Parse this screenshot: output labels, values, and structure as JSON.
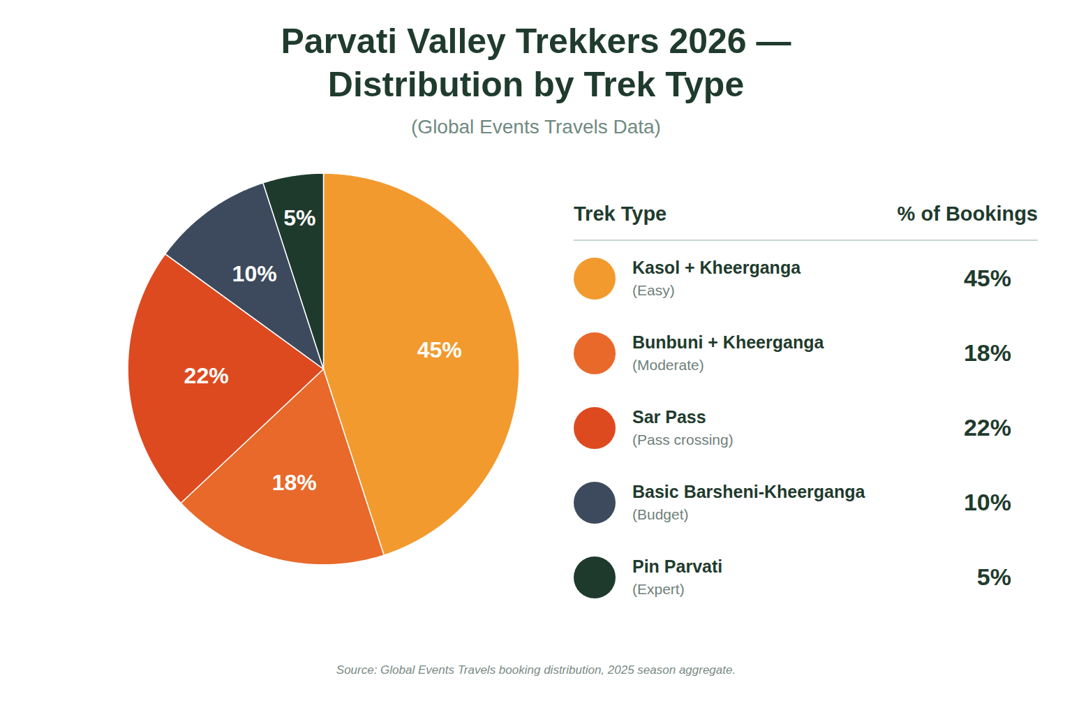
{
  "chart_data": {
    "type": "pie",
    "title": "Parvati Valley Trekkers 2026 — Distribution by Trek Type",
    "subtitle": "(Global Events Travels Data)",
    "categories": [
      "Kasol + Kheerganga",
      "Bunbuni + Kheerganga",
      "Sar Pass",
      "Basic Barsheni-Kheerganga",
      "Pin Parvati"
    ],
    "category_notes": [
      "(Easy)",
      "(Moderate)",
      "(Pass crossing)",
      "(Budget)",
      "(Expert)"
    ],
    "values": [
      45,
      18,
      22,
      10,
      5
    ],
    "value_labels": [
      "45%",
      "18%",
      "22%",
      "10%",
      "5%"
    ],
    "colors": [
      "#F29A2E",
      "#E8692A",
      "#DE4A1F",
      "#3D4A5E",
      "#1E3A2C"
    ],
    "data_labels": true,
    "legend": "right",
    "legend_headers": [
      "Trek Type",
      "% of Bookings"
    ],
    "caption": "Source: Global Events Travels booking distribution, 2025 season aggregate."
  }
}
